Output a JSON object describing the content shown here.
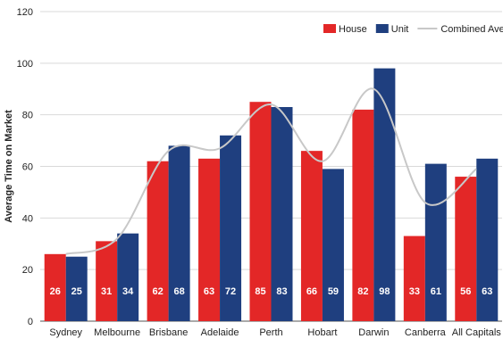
{
  "chart_data": {
    "type": "bar",
    "title": "",
    "xlabel": "",
    "ylabel": "Average Time on Market",
    "ylim": [
      0,
      120
    ],
    "yticks": [
      0,
      20,
      40,
      60,
      80,
      100,
      120
    ],
    "grid": true,
    "legend_position": "top-right",
    "categories": [
      "Sydney",
      "Melbourne",
      "Brisbane",
      "Adelaide",
      "Perth",
      "Hobart",
      "Darwin",
      "Canberra",
      "All Capitals"
    ],
    "series": [
      {
        "name": "House",
        "type": "bar",
        "color": "#e32727",
        "values": [
          26,
          31,
          62,
          63,
          85,
          66,
          82,
          33,
          56
        ]
      },
      {
        "name": "Unit",
        "type": "bar",
        "color": "#1f3f7f",
        "values": [
          25,
          34,
          68,
          72,
          83,
          59,
          98,
          61,
          63
        ]
      },
      {
        "name": "Combined Average",
        "type": "line",
        "color": "#c8c8c8",
        "values": [
          26,
          32,
          66,
          67,
          84,
          62,
          90,
          46,
          59
        ]
      }
    ]
  }
}
